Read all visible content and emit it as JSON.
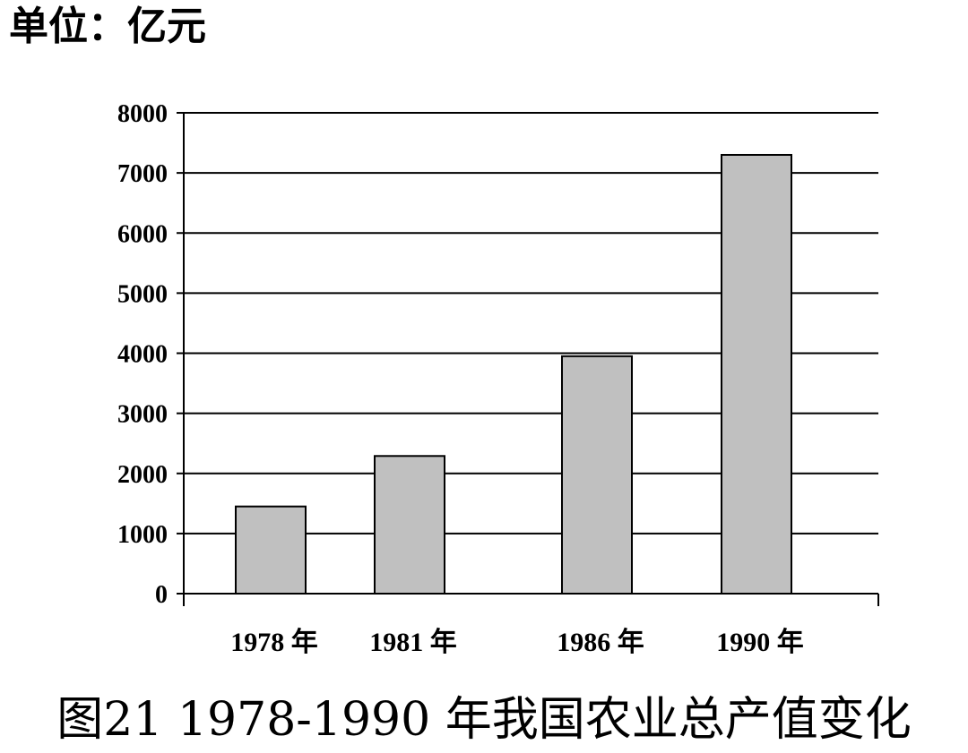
{
  "unit_label": "单位：亿元",
  "caption": "图21  1978-1990 年我国农业总产值变化",
  "chart_data": {
    "type": "bar",
    "categories": [
      "1978 年",
      "1981 年",
      "1986 年",
      "1990 年"
    ],
    "values": [
      1450,
      2290,
      3950,
      7300
    ],
    "title": "图21  1978-1990 年我国农业总产值变化",
    "ylabel": "单位：亿元",
    "xlabel": "",
    "ylim": [
      0,
      8000
    ],
    "yticks": [
      0,
      1000,
      2000,
      3000,
      4000,
      5000,
      6000,
      7000,
      8000
    ],
    "grid": true,
    "bar_color": "#c0c0c0",
    "bar_edge_color": "#000000"
  }
}
